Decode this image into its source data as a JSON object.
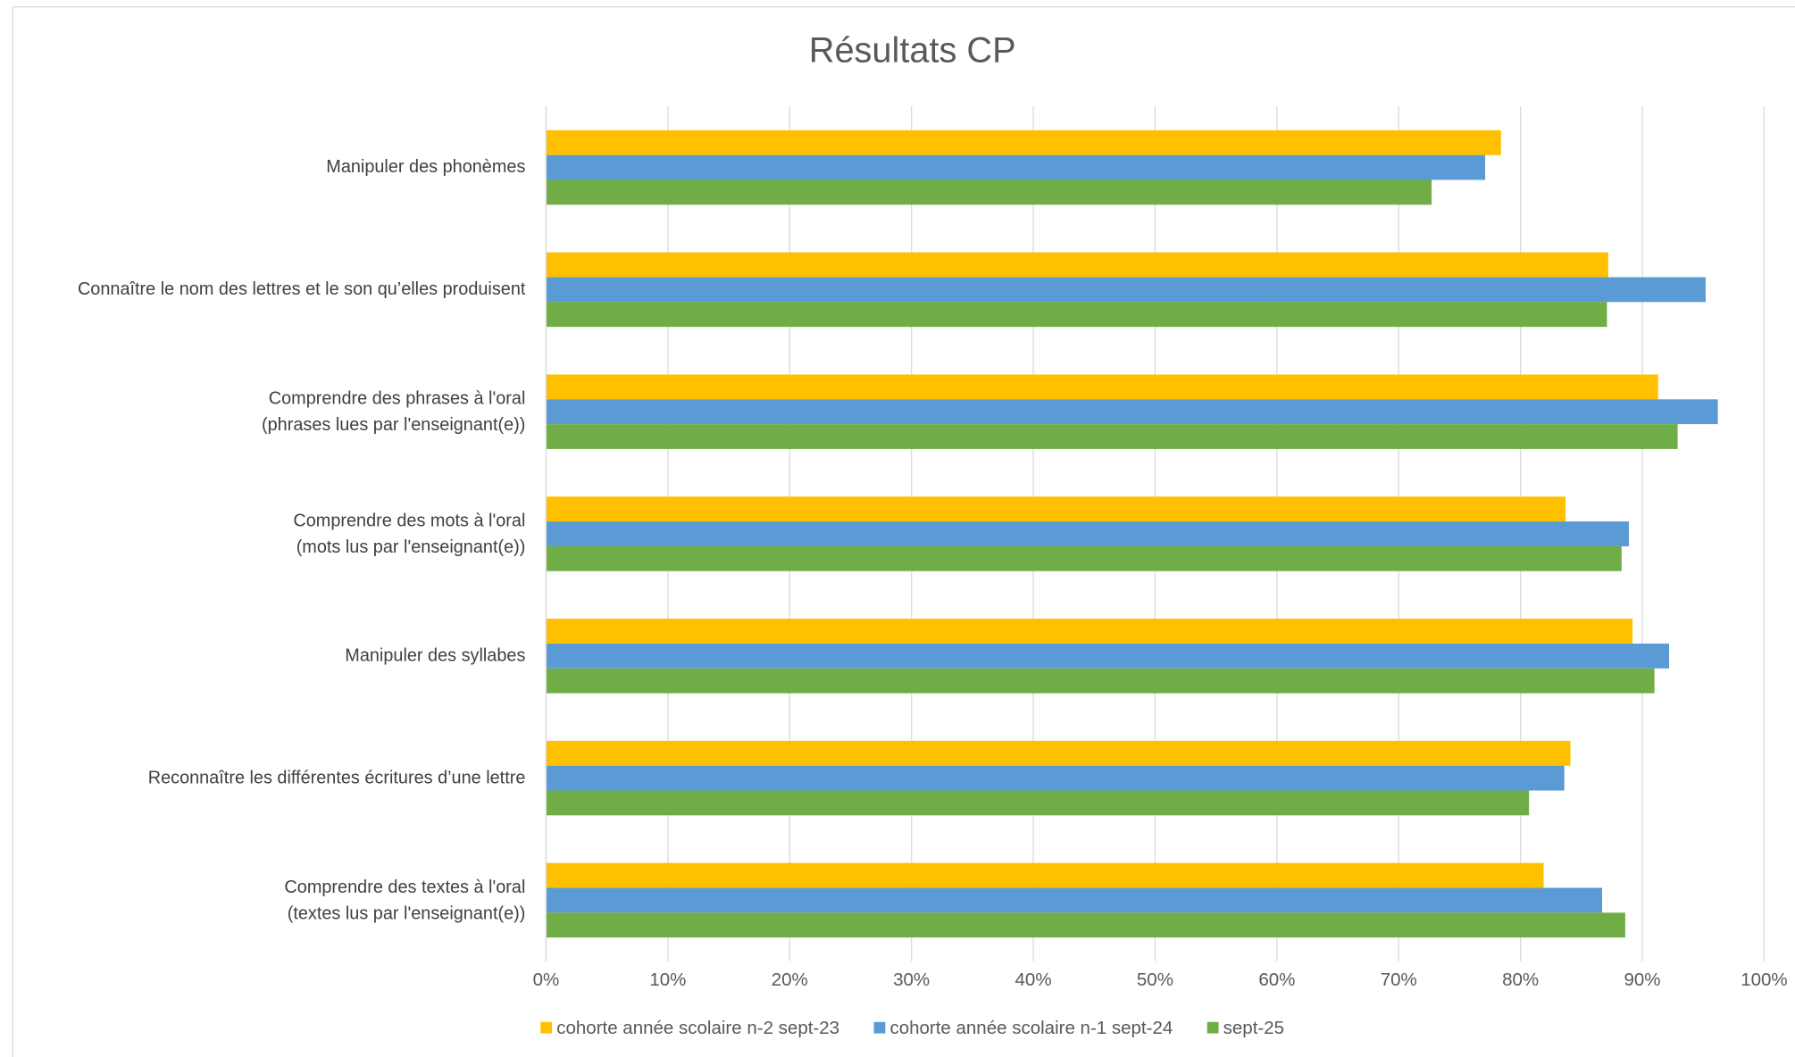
{
  "chart_data": {
    "type": "bar",
    "orientation": "horizontal",
    "title": "Résultats CP",
    "categories": [
      "Manipuler des phonèmes",
      "Connaître le nom des lettres et le son qu’elles produisent",
      "Comprendre des phrases à l'oral\n(phrases lues par l'enseignant(e))",
      "Comprendre des mots à l'oral\n(mots lus par l'enseignant(e))",
      "Manipuler des syllabes",
      "Reconnaître les différentes écritures d’une lettre",
      "Comprendre des textes à l'oral\n(textes lus par l'enseignant(e))"
    ],
    "series": [
      {
        "name": "cohorte année scolaire n-2 sept-23",
        "color": "#FFC000",
        "values": [
          78.4,
          87.2,
          91.3,
          83.7,
          89.2,
          84.1,
          81.9
        ]
      },
      {
        "name": "cohorte année scolaire n-1 sept-24",
        "color": "#5B9BD5",
        "values": [
          77.1,
          95.2,
          96.2,
          88.9,
          92.2,
          83.6,
          86.7
        ]
      },
      {
        "name": "sept-25",
        "color": "#70AD47",
        "values": [
          72.7,
          87.1,
          92.9,
          88.3,
          91.0,
          80.7,
          88.6
        ]
      }
    ],
    "xlim": [
      0,
      100
    ],
    "xticks": [
      {
        "value": 0,
        "label": "0%"
      },
      {
        "value": 10,
        "label": "10%"
      },
      {
        "value": 20,
        "label": "20%"
      },
      {
        "value": 30,
        "label": "30%"
      },
      {
        "value": 40,
        "label": "40%"
      },
      {
        "value": 50,
        "label": "50%"
      },
      {
        "value": 60,
        "label": "60%"
      },
      {
        "value": 70,
        "label": "70%"
      },
      {
        "value": 80,
        "label": "80%"
      },
      {
        "value": 90,
        "label": "90%"
      },
      {
        "value": 100,
        "label": "100%"
      }
    ],
    "grid": true,
    "legend": "bottom"
  }
}
